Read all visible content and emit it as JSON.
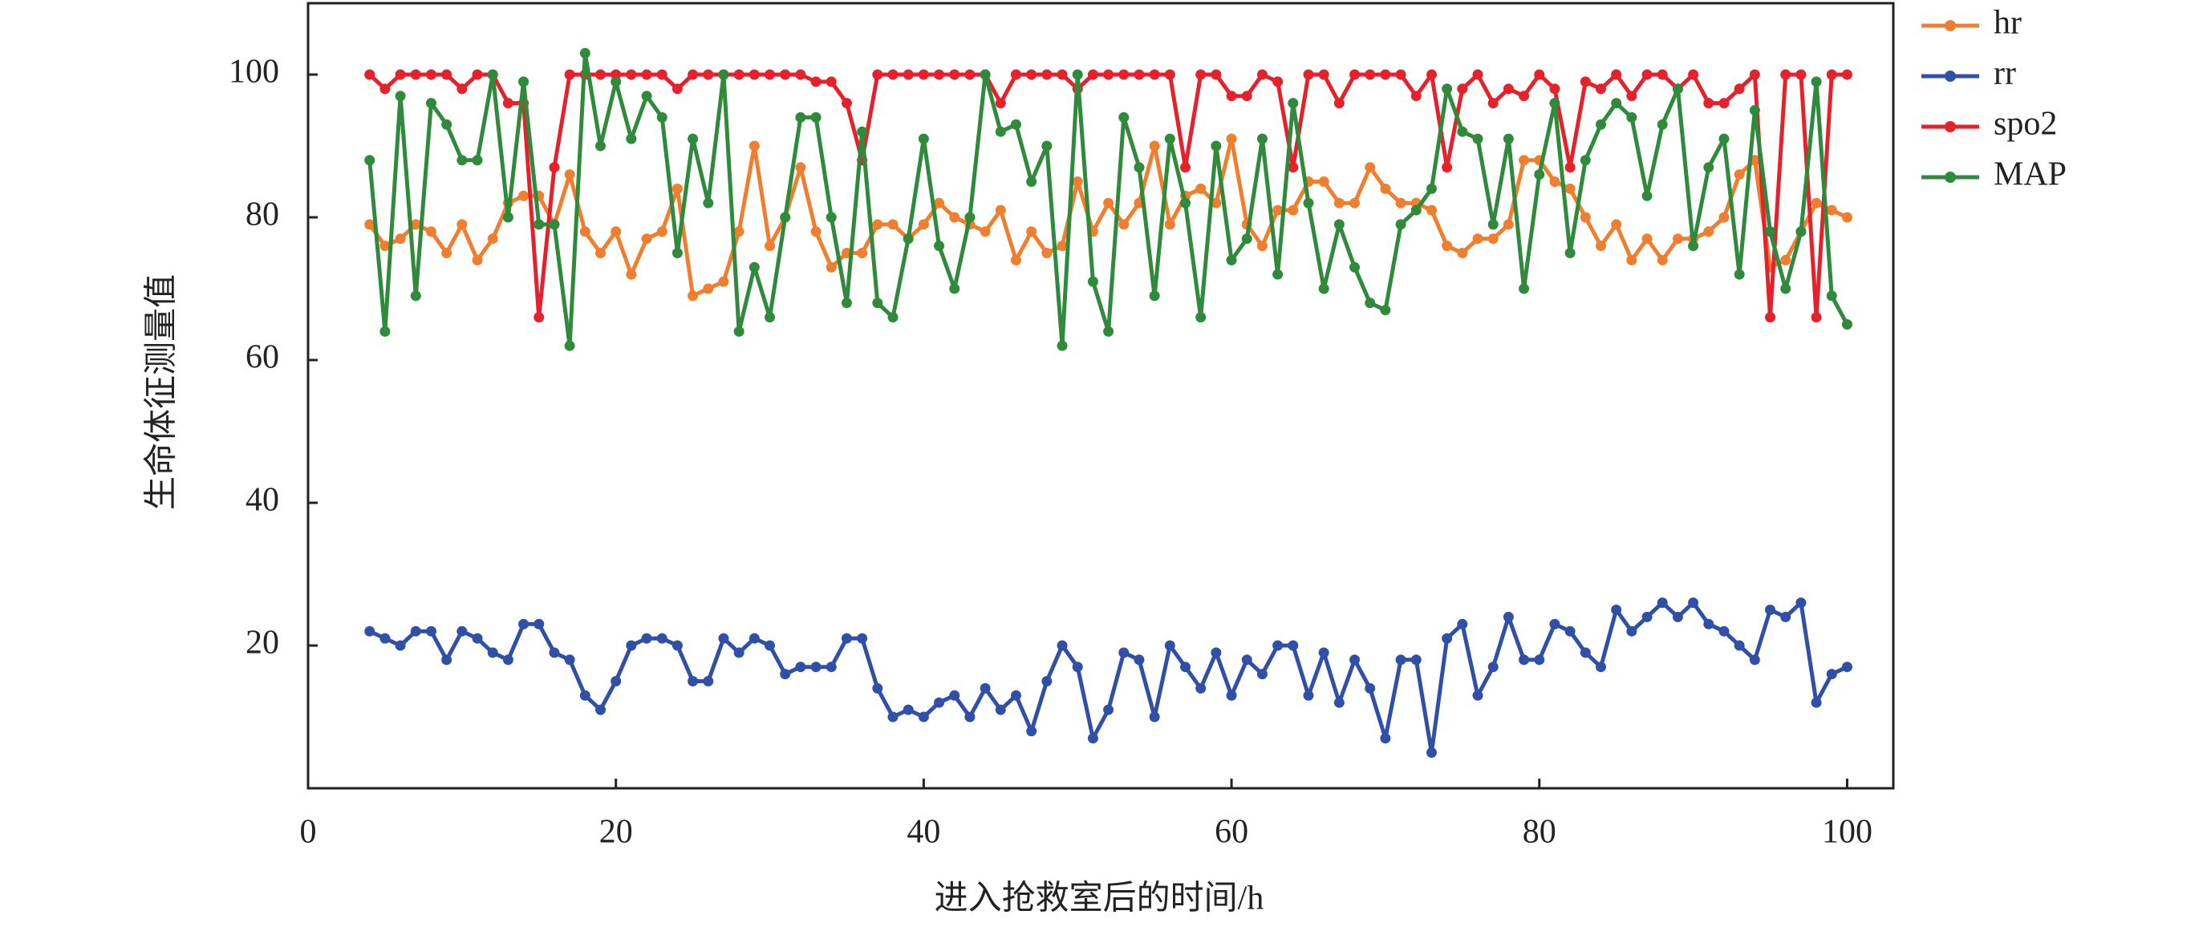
{
  "chart_data": {
    "type": "line",
    "xlabel": "进入抢救室后的时间/h",
    "ylabel": "生命体征测量值",
    "x": [
      4,
      5,
      6,
      7,
      8,
      9,
      10,
      11,
      12,
      13,
      14,
      15,
      16,
      17,
      18,
      19,
      20,
      21,
      22,
      23,
      24,
      25,
      26,
      27,
      28,
      29,
      30,
      31,
      32,
      33,
      34,
      35,
      36,
      37,
      38,
      39,
      40,
      41,
      42,
      43,
      44,
      45,
      46,
      47,
      48,
      49,
      50,
      51,
      52,
      53,
      54,
      55,
      56,
      57,
      58,
      59,
      60,
      61,
      62,
      63,
      64,
      65,
      66,
      67,
      68,
      69,
      70,
      71,
      72,
      73,
      74,
      75,
      76,
      77,
      78,
      79,
      80,
      81,
      82,
      83,
      84,
      85,
      86,
      87,
      88,
      89,
      90,
      91,
      92,
      93,
      94,
      95,
      96,
      97,
      98,
      99,
      100
    ],
    "series": [
      {
        "name": "hr",
        "color": "#ef7f2f",
        "values": [
          79,
          76,
          77,
          79,
          78,
          75,
          79,
          74,
          77,
          82,
          83,
          83,
          79,
          86,
          78,
          75,
          78,
          72,
          77,
          78,
          84,
          69,
          70,
          71,
          78,
          90,
          76,
          80,
          87,
          78,
          73,
          75,
          75,
          79,
          79,
          77,
          79,
          82,
          80,
          79,
          78,
          81,
          74,
          78,
          75,
          76,
          85,
          78,
          82,
          79,
          82,
          90,
          79,
          83,
          84,
          82,
          91,
          79,
          76,
          81,
          81,
          85,
          85,
          82,
          82,
          87,
          84,
          82,
          82,
          81,
          76,
          75,
          77,
          77,
          79,
          88,
          88,
          85,
          84,
          80,
          76,
          79,
          74,
          77,
          74,
          77,
          77,
          78,
          80,
          86,
          88,
          73,
          74,
          78,
          82,
          81,
          80
        ]
      },
      {
        "name": "rr",
        "color": "#3050a8",
        "values": [
          22,
          21,
          20,
          22,
          22,
          18,
          22,
          21,
          19,
          18,
          23,
          23,
          19,
          18,
          13,
          11,
          15,
          20,
          21,
          21,
          20,
          15,
          15,
          21,
          19,
          21,
          20,
          16,
          17,
          17,
          17,
          21,
          21,
          14,
          10,
          11,
          10,
          12,
          13,
          10,
          14,
          11,
          13,
          8,
          15,
          20,
          17,
          7,
          11,
          19,
          18,
          10,
          20,
          17,
          14,
          19,
          13,
          18,
          16,
          20,
          20,
          13,
          19,
          12,
          18,
          14,
          7,
          18,
          18,
          5,
          21,
          23,
          13,
          17,
          24,
          18,
          18,
          23,
          22,
          19,
          17,
          25,
          22,
          24,
          26,
          24,
          26,
          23,
          22,
          20,
          18,
          25,
          24,
          26,
          12,
          16,
          17
        ]
      },
      {
        "name": "spo2",
        "color": "#e5222c",
        "values": [
          100,
          98,
          100,
          100,
          100,
          100,
          98,
          100,
          100,
          96,
          96,
          66,
          87,
          100,
          100,
          100,
          100,
          100,
          100,
          100,
          98,
          100,
          100,
          100,
          100,
          100,
          100,
          100,
          100,
          99,
          99,
          96,
          88,
          100,
          100,
          100,
          100,
          100,
          100,
          100,
          100,
          96,
          100,
          100,
          100,
          100,
          98,
          100,
          100,
          100,
          100,
          100,
          100,
          87,
          100,
          100,
          97,
          97,
          100,
          99,
          87,
          100,
          100,
          96,
          100,
          100,
          100,
          100,
          97,
          100,
          87,
          98,
          100,
          96,
          98,
          97,
          100,
          98,
          87,
          99,
          98,
          100,
          97,
          100,
          100,
          98,
          100,
          96,
          96,
          98,
          100,
          66,
          100,
          100,
          66,
          100,
          100
        ]
      },
      {
        "name": "MAP",
        "color": "#2f8a3c",
        "values": [
          88,
          64,
          97,
          69,
          96,
          93,
          88,
          88,
          100,
          80,
          99,
          79,
          79,
          62,
          103,
          90,
          99,
          91,
          97,
          94,
          75,
          91,
          82,
          100,
          64,
          73,
          66,
          80,
          94,
          94,
          80,
          68,
          92,
          68,
          66,
          77,
          91,
          76,
          70,
          80,
          100,
          92,
          93,
          85,
          90,
          62,
          100,
          71,
          64,
          94,
          87,
          69,
          91,
          82,
          66,
          90,
          74,
          77,
          91,
          72,
          96,
          82,
          70,
          79,
          73,
          68,
          67,
          79,
          81,
          84,
          98,
          92,
          91,
          79,
          91,
          70,
          86,
          96,
          75,
          88,
          93,
          96,
          94,
          83,
          93,
          98,
          76,
          87,
          91,
          72,
          95,
          78,
          70,
          78,
          99,
          69,
          65
        ]
      }
    ],
    "xlim": [
      0,
      103
    ],
    "ylim": [
      0,
      110
    ],
    "xticks": [
      0,
      20,
      40,
      60,
      80,
      100
    ],
    "yticks": [
      20,
      40,
      60,
      80,
      100
    ],
    "legend": "right"
  }
}
